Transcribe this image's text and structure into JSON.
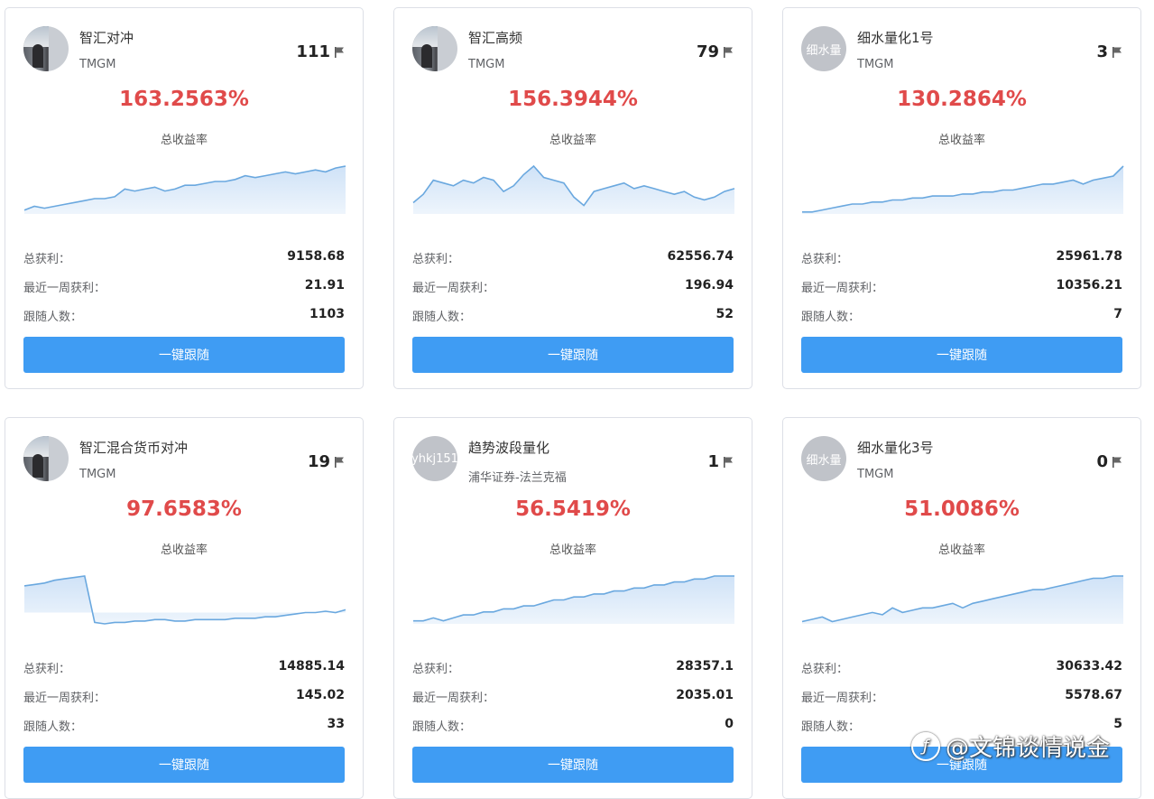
{
  "accent_color": "#3f9cf3",
  "rate_color": "#e04a4a",
  "cards": [
    {
      "name": "智汇对冲",
      "broker": "TMGM",
      "count": "111",
      "avatar": "photo",
      "avatar_text": "",
      "rate": "163.2563%",
      "rate_label": "总收益率",
      "stats": [
        {
          "label": "总获利：",
          "value": "9158.68"
        },
        {
          "label": "最近一周获利：",
          "value": "21.91"
        },
        {
          "label": "跟随人数：",
          "value": "1103"
        }
      ],
      "button": "一键跟随",
      "chart_data": {
        "type": "area",
        "values": [
          2,
          4,
          3,
          4,
          5,
          6,
          7,
          8,
          8,
          9,
          13,
          12,
          13,
          14,
          12,
          13,
          15,
          15,
          16,
          17,
          17,
          18,
          20,
          19,
          20,
          21,
          22,
          21,
          22,
          23,
          22,
          24,
          25
        ]
      }
    },
    {
      "name": "智汇高频",
      "broker": "TMGM",
      "count": "79",
      "avatar": "photo",
      "avatar_text": "",
      "rate": "156.3944%",
      "rate_label": "总收益率",
      "stats": [
        {
          "label": "总获利：",
          "value": "62556.74"
        },
        {
          "label": "最近一周获利：",
          "value": "196.94"
        },
        {
          "label": "跟随人数：",
          "value": "52"
        }
      ],
      "button": "一键跟随",
      "chart_data": {
        "type": "area",
        "values": [
          4,
          7,
          12,
          11,
          10,
          12,
          11,
          13,
          12,
          8,
          10,
          14,
          17,
          13,
          12,
          11,
          6,
          3,
          8,
          9,
          10,
          11,
          9,
          10,
          9,
          8,
          7,
          8,
          6,
          5,
          6,
          8,
          9
        ]
      }
    },
    {
      "name": "细水量化1号",
      "broker": "TMGM",
      "count": "3",
      "avatar": "text",
      "avatar_text": "细水量",
      "rate": "130.2864%",
      "rate_label": "总收益率",
      "stats": [
        {
          "label": "总获利：",
          "value": "25961.78"
        },
        {
          "label": "最近一周获利：",
          "value": "10356.21"
        },
        {
          "label": "跟随人数：",
          "value": "7"
        }
      ],
      "button": "一键跟随",
      "chart_data": {
        "type": "area",
        "values": [
          1,
          1,
          2,
          3,
          4,
          5,
          5,
          6,
          6,
          7,
          7,
          8,
          8,
          9,
          9,
          9,
          10,
          10,
          11,
          11,
          12,
          12,
          13,
          14,
          15,
          15,
          16,
          17,
          15,
          17,
          18,
          19,
          24
        ]
      }
    },
    {
      "name": "智汇混合货币对冲",
      "broker": "TMGM",
      "count": "19",
      "avatar": "photo",
      "avatar_text": "",
      "rate": "97.6583%",
      "rate_label": "总收益率",
      "stats": [
        {
          "label": "总获利：",
          "value": "14885.14"
        },
        {
          "label": "最近一周获利：",
          "value": "145.02"
        },
        {
          "label": "跟随人数：",
          "value": "33"
        }
      ],
      "button": "一键跟随",
      "chart_data": {
        "type": "area",
        "values": [
          24,
          25,
          26,
          28,
          29,
          30,
          31,
          -2,
          -3,
          -2,
          -2,
          -1,
          -1,
          0,
          0,
          -1,
          -1,
          0,
          0,
          0,
          0,
          1,
          1,
          1,
          2,
          2,
          3,
          4,
          5,
          5,
          6,
          5,
          7
        ]
      }
    },
    {
      "name": "趋势波段量化",
      "broker": "浦华证券-法兰克福",
      "count": "1",
      "avatar": "text",
      "avatar_text": "yhkj151",
      "rate": "56.5419%",
      "rate_label": "总收益率",
      "stats": [
        {
          "label": "总获利：",
          "value": "28357.1"
        },
        {
          "label": "最近一周获利：",
          "value": "2035.01"
        },
        {
          "label": "跟随人数：",
          "value": "0"
        }
      ],
      "button": "一键跟随",
      "chart_data": {
        "type": "area",
        "values": [
          1,
          1,
          2,
          1,
          2,
          3,
          3,
          4,
          4,
          5,
          5,
          6,
          6,
          7,
          8,
          8,
          9,
          9,
          10,
          10,
          11,
          11,
          12,
          12,
          13,
          13,
          14,
          14,
          15,
          15,
          16,
          16,
          16
        ]
      }
    },
    {
      "name": "细水量化3号",
      "broker": "TMGM",
      "count": "0",
      "avatar": "text",
      "avatar_text": "细水量",
      "rate": "51.0086%",
      "rate_label": "总收益率",
      "stats": [
        {
          "label": "总获利：",
          "value": "30633.42"
        },
        {
          "label": "最近一周获利：",
          "value": "5578.67"
        },
        {
          "label": "跟随人数：",
          "value": "5"
        }
      ],
      "button": "一键跟随",
      "chart_data": {
        "type": "area",
        "values": [
          1,
          2,
          3,
          1,
          2,
          3,
          4,
          5,
          4,
          7,
          5,
          6,
          7,
          7,
          8,
          9,
          7,
          9,
          10,
          11,
          12,
          13,
          14,
          15,
          15,
          16,
          17,
          18,
          19,
          20,
          20,
          21,
          21
        ]
      }
    }
  ],
  "watermark": {
    "logo": "ƒ",
    "text": "@文锦谈情说金"
  }
}
